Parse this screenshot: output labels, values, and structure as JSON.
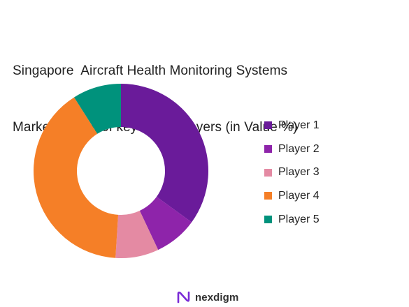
{
  "title_lines": [
    "Singapore  Aircraft Health Monitoring Systems",
    "Market shares of key major players (in Value %)"
  ],
  "brand": {
    "name": "nexdigm",
    "logo_icon": "nexdigm-logo-icon",
    "logo_color": "#7a2bd6"
  },
  "chart_data": {
    "type": "pie",
    "style": "donut",
    "title": "Singapore  Aircraft Health Monitoring Systems\nMarket shares of key major players (in Value %)",
    "categories": [
      "Player 1",
      "Player 2",
      "Player 3",
      "Player 4",
      "Player 5"
    ],
    "values": [
      35,
      8,
      8,
      40,
      9
    ],
    "colors": [
      "#6a1b9a",
      "#8e24aa",
      "#e48aa3",
      "#f57f27",
      "#00927c"
    ],
    "legend_position": "right"
  }
}
